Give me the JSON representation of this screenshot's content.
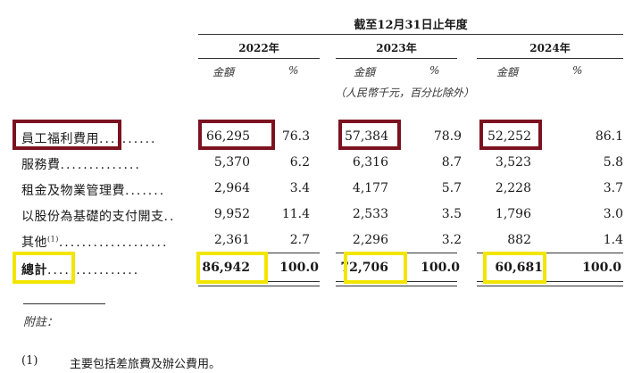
{
  "period_title": "截至12月31日止年度",
  "years": [
    "2022年",
    "2023年",
    "2024年"
  ],
  "col_headers": {
    "amount": "金額",
    "percent": "%"
  },
  "unit_note": "（人民幣千元，百分比除外）",
  "rows": [
    {
      "label": "員工福利費用",
      "dots": "..........",
      "v2022": "66,295",
      "p2022": "76.3",
      "v2023": "57,384",
      "p2023": "78.9",
      "v2024": "52,252",
      "p2024": "86.1"
    },
    {
      "label": "服務費",
      "dots": "..............",
      "v2022": "5,370",
      "p2022": "6.2",
      "v2023": "6,316",
      "p2023": "8.7",
      "v2024": "3,523",
      "p2024": "5.8"
    },
    {
      "label": "租金及物業管理費",
      "dots": ".......",
      "v2022": "2,964",
      "p2022": "3.4",
      "v2023": "4,177",
      "p2023": "5.7",
      "v2024": "2,228",
      "p2024": "3.7"
    },
    {
      "label": "以股份為基礎的支付開支",
      "dots": "..",
      "v2022": "9,952",
      "p2022": "11.4",
      "v2023": "2,533",
      "p2023": "3.5",
      "v2024": "1,796",
      "p2024": "3.0"
    },
    {
      "label": "其他",
      "sup": "(1)",
      "dots": "...................",
      "v2022": "2,361",
      "p2022": "2.7",
      "v2023": "2,296",
      "p2023": "3.2",
      "v2024": "882",
      "p2024": "1.4"
    }
  ],
  "total": {
    "label": "總計",
    "dots": "................",
    "v2022": "86,942",
    "p2022": "100.0",
    "v2023": "72,706",
    "p2023": "100.0",
    "v2024": "60,681",
    "p2024": "100.0"
  },
  "notes_label": "附註：",
  "footnote": {
    "num": "(1)",
    "text": "主要包括差旅費及辦公費用。"
  },
  "highlight_colors": {
    "red": "#7b1220",
    "yellow": "#f2e600"
  }
}
